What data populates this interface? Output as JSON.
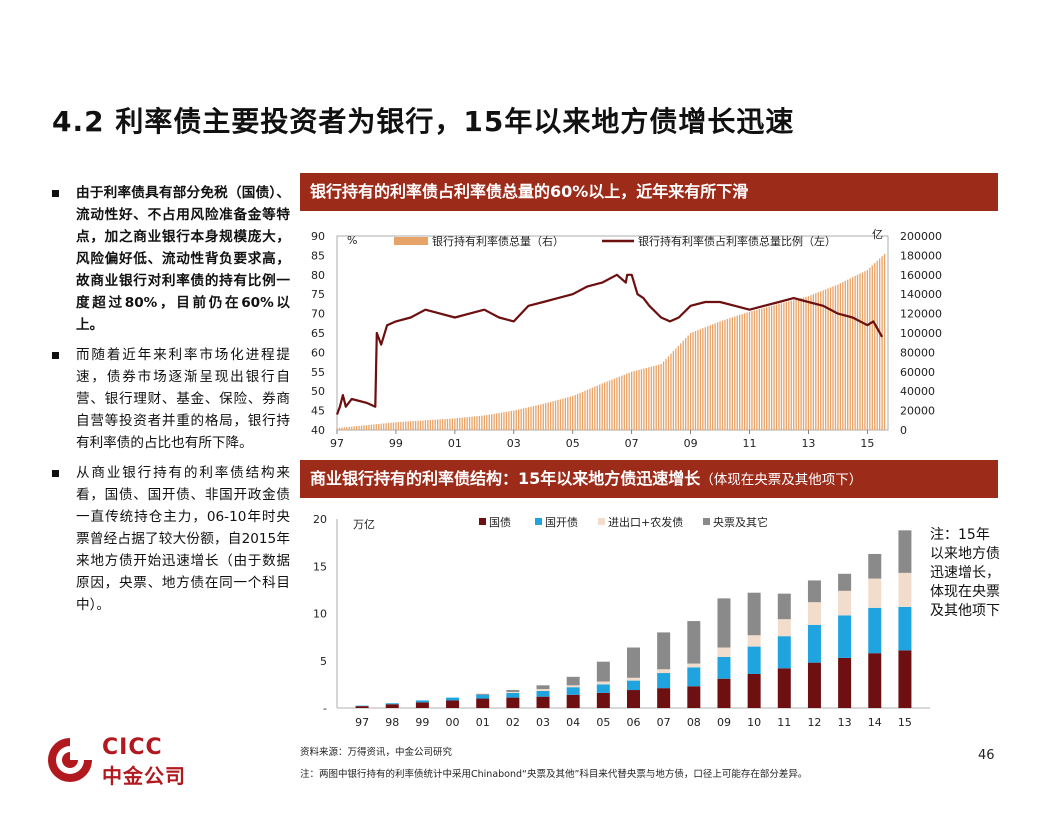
{
  "page": {
    "title": "4.2 利率债主要投资者为银行，15年以来地方债增长迅速",
    "page_number": "46"
  },
  "bullets": [
    "由于利率债具有部分免税（国债）、流动性好、不占用风险准备金等特点，加之商业银行本身规模庞大，风险偏好低、流动性背负要求高，故商业银行对利率债的持有比例一度超过80%，目前仍在60%以上。",
    "而随着近年来利率市场化进程提速，债券市场逐渐呈现出银行自营、银行理财、基金、保险、券商自营等投资者并重的格局，银行持有利率债的占比也有所下降。",
    "从商业银行持有的利率债结构来看，国债、国开债、非国开政金债一直传统持仓主力，06-10年时央票曾经占据了较大份额，自2015年来地方债开始迅速增长（由于数据原因，央票、地方债在同一个科目中）。"
  ],
  "banner1": {
    "text": "银行持有的利率债占利率债总量的60%以上，近年来有所下滑"
  },
  "banner2": {
    "text": "商业银行持有的利率债结构：15年以来地方债迅速增长",
    "sub": "（体现在央票及其他项下）"
  },
  "note": "注：15年以来地方债迅速增长，体现在央票及其他项下",
  "footer": {
    "source": "资料来源：万得资讯，中金公司研究",
    "note": "注：两图中银行持有的利率债统计中采用Chinabond“央票及其他”科目来代替央票与地方债，口径上可能存在部分差异。"
  },
  "logo": {
    "en": "CICC",
    "cn": "中金公司"
  },
  "colors": {
    "brand": "#9c2b1a",
    "line": "#6b0f0f",
    "bar_light": "#e8a468",
    "guozhai": "#6e0f12",
    "guokai": "#1fa4e0",
    "jinchukou": "#f2dccb",
    "yangpiao": "#8a8a8a"
  },
  "chart_data": [
    {
      "type": "line",
      "title": "",
      "left_unit": "%",
      "right_unit": "亿",
      "ylim_left": [
        40,
        90
      ],
      "yticks_left": [
        40,
        45,
        50,
        55,
        60,
        65,
        70,
        75,
        80,
        85,
        90
      ],
      "ylim_right": [
        0,
        200000
      ],
      "yticks_right": [
        0,
        20000,
        40000,
        60000,
        80000,
        100000,
        120000,
        140000,
        160000,
        180000,
        200000
      ],
      "xlim": [
        1997,
        2015.7
      ],
      "xtick_labels": [
        "97",
        "99",
        "01",
        "03",
        "05",
        "07",
        "09",
        "11",
        "13",
        "15"
      ],
      "xticks": [
        1997,
        1999,
        2001,
        2003,
        2005,
        2007,
        2009,
        2011,
        2013,
        2015
      ],
      "series": [
        {
          "name": "银行持有利率债总量（右）",
          "kind": "bar",
          "axis": "right",
          "x": [
            1997.0,
            1998.0,
            1999.0,
            2000.0,
            2001.0,
            2002.0,
            2003.0,
            2004.0,
            2005.0,
            2006.0,
            2007.0,
            2008.0,
            2009.0,
            2010.0,
            2011.0,
            2012.0,
            2013.0,
            2014.0,
            2015.0,
            2015.6
          ],
          "y": [
            2000,
            5000,
            8000,
            10000,
            12000,
            15000,
            20000,
            27000,
            35000,
            48000,
            60000,
            68000,
            100000,
            112000,
            122000,
            130000,
            138000,
            150000,
            165000,
            182000
          ]
        },
        {
          "name": "银行持有利率债占利率债总量比例（左）",
          "kind": "line",
          "axis": "left",
          "x": [
            1997.0,
            1997.1,
            1997.2,
            1997.3,
            1997.5,
            1998.0,
            1998.3,
            1998.35,
            1998.5,
            1998.7,
            1999.0,
            1999.5,
            2000.0,
            2000.5,
            2001.0,
            2001.5,
            2002.0,
            2002.5,
            2003.0,
            2003.5,
            2004.0,
            2004.5,
            2005.0,
            2005.5,
            2006.0,
            2006.5,
            2006.8,
            2006.85,
            2007.0,
            2007.2,
            2007.4,
            2007.6,
            2008.0,
            2008.3,
            2008.6,
            2009.0,
            2009.5,
            2010.0,
            2010.5,
            2011.0,
            2011.5,
            2012.0,
            2012.5,
            2013.0,
            2013.5,
            2014.0,
            2014.5,
            2015.0,
            2015.2,
            2015.35,
            2015.5
          ],
          "y": [
            44,
            46,
            49,
            46,
            48,
            47,
            46,
            65,
            62,
            67,
            68,
            69,
            71,
            70,
            69,
            70,
            71,
            69,
            68,
            72,
            73,
            74,
            75,
            77,
            78,
            80,
            78,
            80,
            80,
            75,
            74,
            72,
            69,
            68,
            69,
            72,
            73,
            73,
            72,
            71,
            72,
            73,
            74,
            73,
            72,
            70,
            69,
            67,
            68,
            66,
            64
          ]
        }
      ]
    },
    {
      "type": "bar",
      "stacked": true,
      "title": "",
      "ylabel": "万亿",
      "ylim": [
        0,
        20
      ],
      "yticks": [
        "-",
        "5",
        "10",
        "15",
        "20"
      ],
      "categories": [
        "97",
        "98",
        "99",
        "00",
        "01",
        "02",
        "03",
        "04",
        "05",
        "06",
        "07",
        "08",
        "09",
        "10",
        "11",
        "12",
        "13",
        "14",
        "15"
      ],
      "series": [
        {
          "name": "国债",
          "values": [
            0.2,
            0.4,
            0.6,
            0.8,
            1.0,
            1.1,
            1.2,
            1.4,
            1.6,
            1.9,
            2.1,
            2.3,
            3.1,
            3.6,
            4.2,
            4.8,
            5.3,
            5.8,
            6.1
          ]
        },
        {
          "name": "国开债",
          "values": [
            0.05,
            0.1,
            0.2,
            0.3,
            0.4,
            0.5,
            0.6,
            0.8,
            0.9,
            1.0,
            1.6,
            2.0,
            2.3,
            2.9,
            3.4,
            4.0,
            4.5,
            4.8,
            4.6
          ]
        },
        {
          "name": "进出口+农发债",
          "values": [
            0.0,
            0.0,
            0.0,
            0.0,
            0.0,
            0.1,
            0.2,
            0.2,
            0.3,
            0.3,
            0.4,
            0.4,
            1.0,
            1.2,
            1.8,
            2.4,
            2.6,
            3.1,
            3.6
          ]
        },
        {
          "name": "央票及其它",
          "values": [
            0.0,
            0.0,
            0.0,
            0.0,
            0.1,
            0.2,
            0.4,
            0.9,
            2.1,
            3.2,
            3.9,
            4.5,
            5.2,
            4.5,
            2.7,
            2.3,
            1.8,
            2.6,
            4.5
          ]
        }
      ],
      "legend_position": "top"
    }
  ]
}
